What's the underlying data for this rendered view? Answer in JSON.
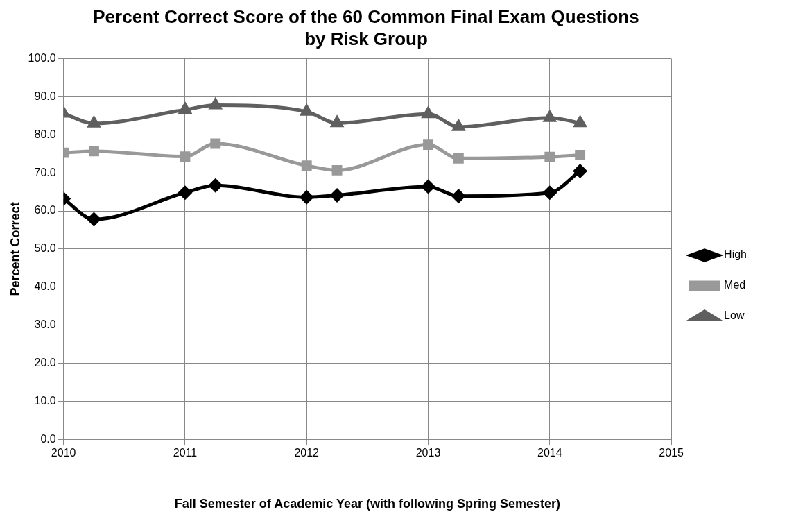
{
  "chart_data": {
    "type": "line",
    "title": "Percent Correct Score of the 60 Common Final Exam Questions by Risk Group",
    "xlabel": "Fall Semester of Academic Year (with following Spring Semester)",
    "ylabel": "Percent Correct",
    "x": [
      2010,
      2010.25,
      2011,
      2011.25,
      2012,
      2012.25,
      2013,
      2013.25,
      2014,
      2014.25
    ],
    "series": [
      {
        "name": "High",
        "color": "#000000",
        "marker": "diamond",
        "values": [
          63.2,
          57.8,
          64.8,
          66.7,
          63.6,
          64.1,
          66.4,
          63.9,
          64.8,
          70.5
        ]
      },
      {
        "name": "Med",
        "color": "#999999",
        "marker": "square",
        "values": [
          75.3,
          75.7,
          74.3,
          77.7,
          71.9,
          70.7,
          77.4,
          73.8,
          74.2,
          74.7
        ]
      },
      {
        "name": "Low",
        "color": "#5f5f5f",
        "marker": "triangle",
        "values": [
          85.6,
          83.0,
          86.6,
          87.8,
          86.1,
          83.1,
          85.5,
          82.1,
          84.5,
          83.1
        ]
      }
    ],
    "xlim": [
      2010,
      2015
    ],
    "xticks": [
      2010,
      2011,
      2012,
      2013,
      2014,
      2015
    ],
    "ylim": [
      0,
      100
    ],
    "yticks": [
      {
        "value": 0,
        "label": "0.0"
      },
      {
        "value": 10,
        "label": "10.0"
      },
      {
        "value": 20,
        "label": "20.0"
      },
      {
        "value": 30,
        "label": "30.0"
      },
      {
        "value": 40,
        "label": "40.0"
      },
      {
        "value": 50,
        "label": "50.0"
      },
      {
        "value": 60,
        "label": "60.0"
      },
      {
        "value": 70,
        "label": "70.0"
      },
      {
        "value": 80,
        "label": "80.0"
      },
      {
        "value": 90,
        "label": "90.0"
      },
      {
        "value": 100,
        "label": "100.0"
      }
    ],
    "grid": true,
    "legend": "right",
    "line_style": "solid"
  }
}
